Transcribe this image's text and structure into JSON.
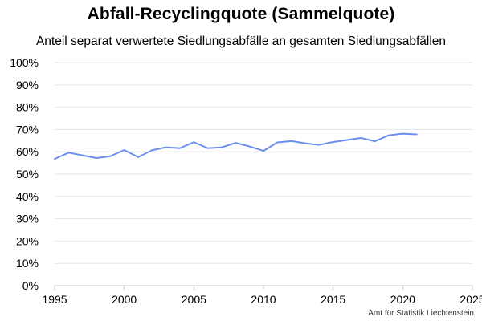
{
  "chart_data": {
    "type": "line",
    "title": "Abfall-Recyclingquote (Sammelquote)",
    "subtitle": "Anteil separat verwertete Siedlungsabfälle an gesamten Siedlungsabfällen",
    "xlabel": "",
    "ylabel": "",
    "xlim": [
      1995,
      2025
    ],
    "ylim": [
      0,
      100
    ],
    "x_ticks": [
      1995,
      2000,
      2005,
      2010,
      2015,
      2020,
      2025
    ],
    "y_ticks": [
      0,
      10,
      20,
      30,
      40,
      50,
      60,
      70,
      80,
      90,
      100
    ],
    "y_tick_labels": [
      "0%",
      "10%",
      "20%",
      "30%",
      "40%",
      "50%",
      "60%",
      "70%",
      "80%",
      "90%",
      "100%"
    ],
    "grid": true,
    "line_color": "#6b8ff0",
    "series": [
      {
        "x": [
          1995,
          1996,
          1997,
          1998,
          1999,
          2000,
          2001,
          2002,
          2003,
          2004,
          2005,
          2006,
          2007,
          2008,
          2009,
          2010,
          2011,
          2012,
          2013,
          2014,
          2015,
          2016,
          2017,
          2018,
          2019,
          2020,
          2021
        ],
        "values": [
          56.8,
          59.6,
          58.4,
          57.2,
          58.0,
          60.8,
          57.6,
          60.7,
          62.0,
          61.6,
          64.3,
          61.6,
          62.0,
          64.0,
          62.4,
          60.4,
          64.2,
          64.8,
          63.8,
          63.1,
          64.4,
          65.3,
          66.2,
          64.7,
          67.4,
          68.1,
          67.8
        ]
      }
    ]
  },
  "source": "Amt für Statistik Liechtenstein"
}
